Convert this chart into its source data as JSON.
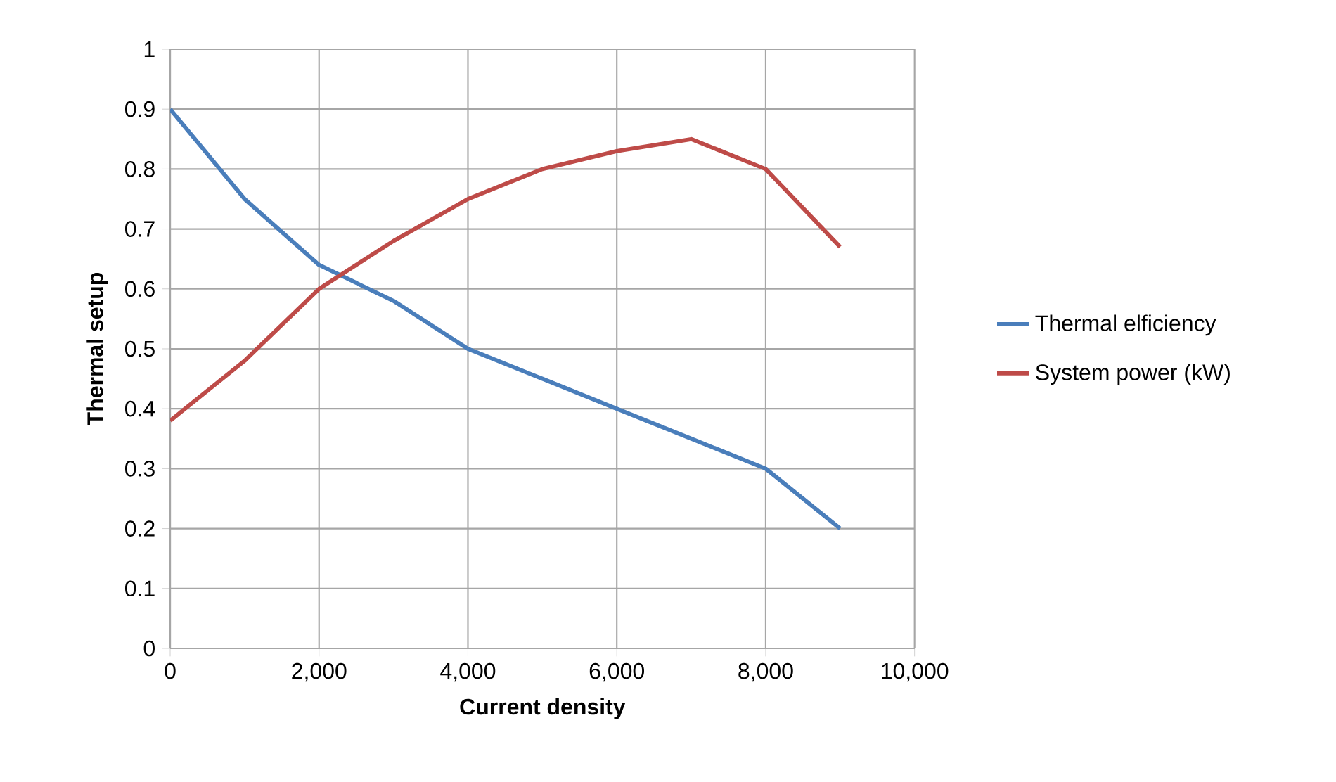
{
  "chart_data": {
    "type": "line",
    "xlabel": "Current density",
    "ylabel": "Thermal setup",
    "x": [
      0,
      1000,
      2000,
      3000,
      4000,
      5000,
      6000,
      7000,
      8000,
      9000
    ],
    "series": [
      {
        "name": "Thermal elficiency",
        "color": "#4a7ebb",
        "values": [
          0.9,
          0.75,
          0.64,
          0.58,
          0.5,
          0.45,
          0.4,
          0.35,
          0.3,
          0.2
        ]
      },
      {
        "name": "System power (kW)",
        "color": "#be4b48",
        "values": [
          0.38,
          0.48,
          0.6,
          0.68,
          0.75,
          0.8,
          0.83,
          0.85,
          0.8,
          0.67
        ]
      }
    ],
    "xlim": [
      0,
      10000
    ],
    "ylim": [
      0,
      1
    ],
    "xticks": [
      0,
      {
        "value": 2000,
        "label": "2,000"
      },
      {
        "value": 4000,
        "label": "4,000"
      },
      {
        "value": 6000,
        "label": "6,000"
      },
      {
        "value": 8000,
        "label": "8,000"
      },
      {
        "value": 10000,
        "label": "10,000"
      }
    ],
    "yticks": [
      0,
      0.1,
      0.2,
      0.3,
      0.4,
      0.5,
      0.6,
      0.7,
      0.8,
      0.9,
      1
    ],
    "grid": true,
    "legend": "right",
    "marker": "none",
    "line_style": "solid"
  }
}
